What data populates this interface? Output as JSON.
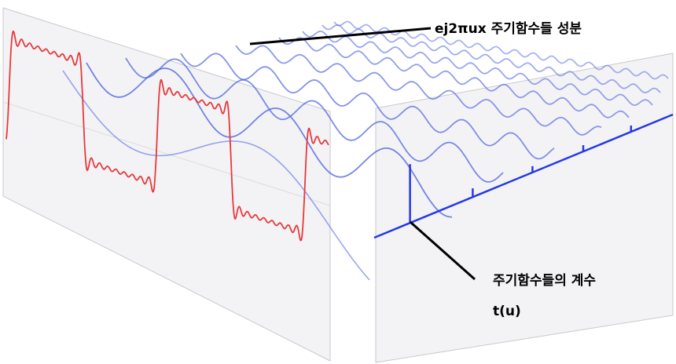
{
  "diagram": {
    "label_components": "ej2πux 주기함수들 성분",
    "label_coefficients": "주기함수들의 계수",
    "label_function": "t(u)"
  },
  "colors": {
    "signal": "#e8393c",
    "components": "#4a5fe0",
    "spectrum": "#2438e8",
    "panel_fill": "#f2f2f4",
    "panel_edge": "#c8c8cc",
    "annotation_line": "#000000"
  },
  "chart_data": {
    "type": "line",
    "series": [
      {
        "kind": "fourier-components",
        "harmonics": [
          1,
          3,
          5,
          7,
          9,
          11,
          13,
          15,
          17
        ]
      },
      {
        "kind": "square-wave-partial-sum",
        "harmonics_summed": 9
      }
    ],
    "spectrum_spikes": [
      {
        "harmonic": 1,
        "coefficient": 1.0
      },
      {
        "harmonic": 3,
        "coefficient": 0.33
      },
      {
        "harmonic": 5,
        "coefficient": 0.2
      },
      {
        "harmonic": 7,
        "coefficient": 0.14
      },
      {
        "harmonic": 9,
        "coefficient": 0.11
      }
    ]
  }
}
